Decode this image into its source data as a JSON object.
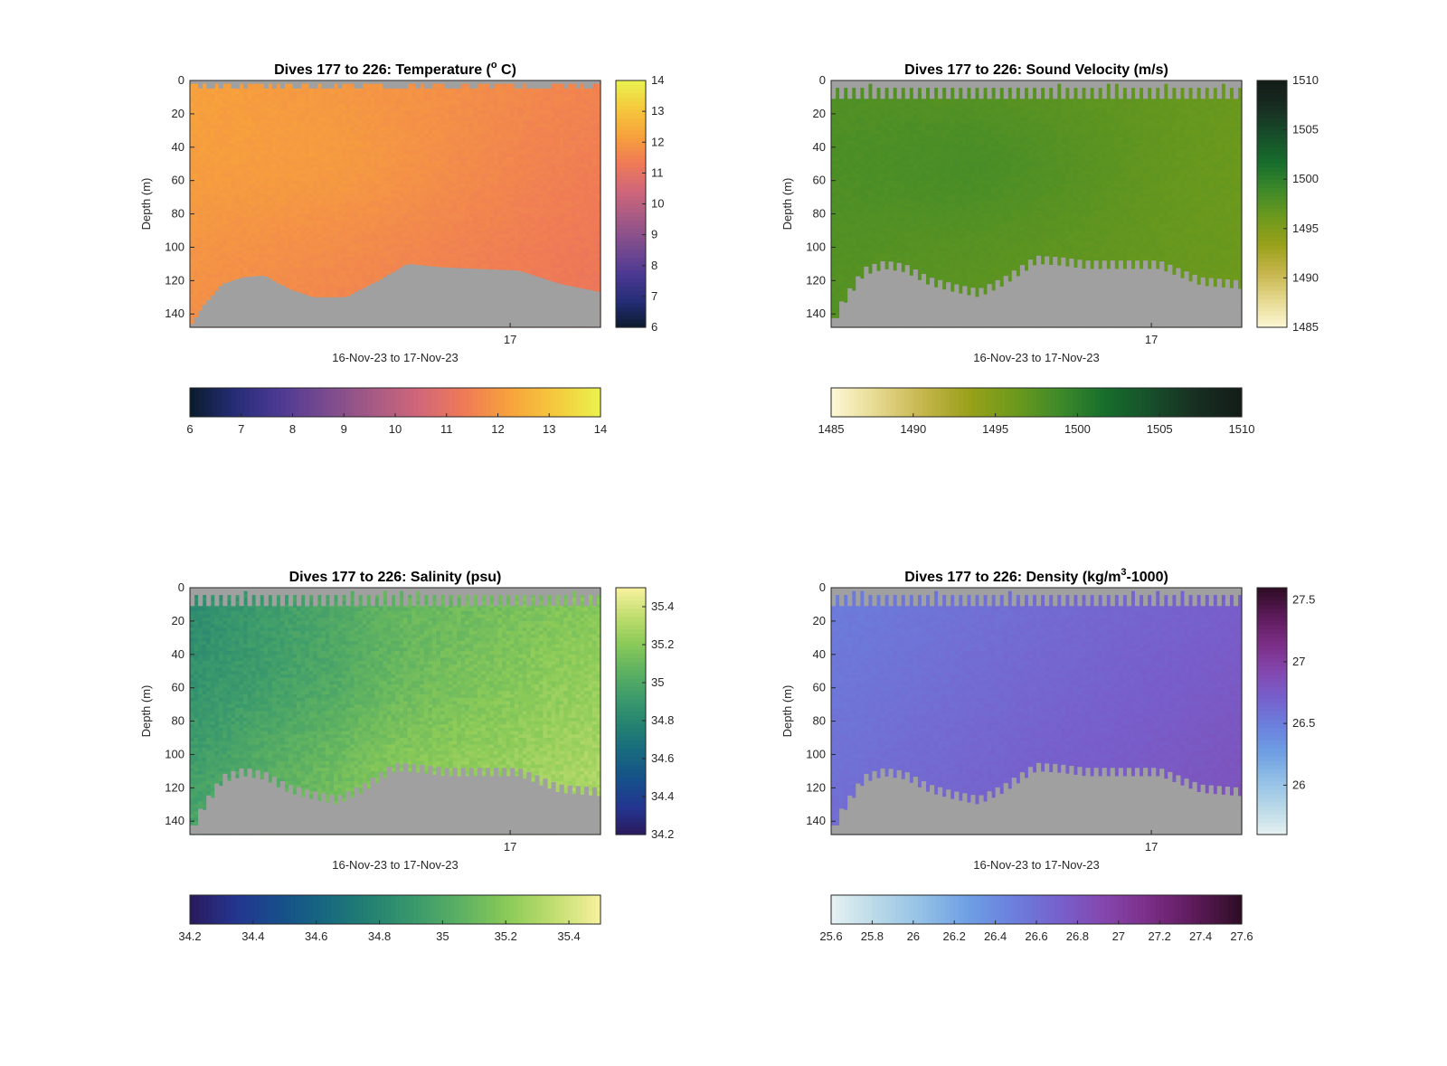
{
  "figure": {
    "background": "#ffffff"
  },
  "chart_data": [
    {
      "type": "heatmap",
      "title_parts": [
        "Dives 177 to 226: Temperature (",
        "o",
        " C)"
      ],
      "title_sup_index": 1,
      "xlabel": "16-Nov-23 to 17-Nov-23",
      "ylabel": "Depth (m)",
      "x_ticks": [
        {
          "label": "17",
          "frac": 0.78
        }
      ],
      "ylim": [
        0,
        148
      ],
      "y_ticks": [
        0,
        20,
        40,
        60,
        80,
        100,
        120,
        140
      ],
      "clim": [
        6,
        14
      ],
      "side_colorbar_ticks": [
        "6",
        "7",
        "8",
        "9",
        "10",
        "11",
        "12",
        "13",
        "14"
      ],
      "bottom_colorbar_ticks": [
        "6",
        "7",
        "8",
        "9",
        "10",
        "11",
        "12",
        "13",
        "14"
      ],
      "colormap": [
        "#0b1b2c",
        "#262d78",
        "#4e3a93",
        "#7a4b8e",
        "#a65a85",
        "#d0667a",
        "#ef7a56",
        "#f7a23c",
        "#f5c93c",
        "#eaf24f"
      ],
      "columns": 100,
      "surface_gap_max": 6,
      "surface_gap_pattern": "random",
      "value_field": {
        "base": 11.9,
        "left_bonus": 0.3,
        "right_penalty": 0.35,
        "mid_bonus": 0.2,
        "deep_penalty": 0.4,
        "noise": 0.08
      },
      "bottom_profile": {
        "x": [
          0,
          0.03,
          0.08,
          0.13,
          0.18,
          0.24,
          0.3,
          0.38,
          0.46,
          0.53,
          0.61,
          0.7,
          0.8,
          0.9,
          1.0
        ],
        "depth": [
          148,
          136,
          122,
          118,
          117,
          125,
          130,
          130,
          120,
          110,
          112,
          113,
          114,
          122,
          127
        ]
      },
      "teeth": false,
      "mask_color": "#a0a0a0"
    },
    {
      "type": "heatmap",
      "title_parts": [
        "Dives 177 to 226: Sound Velocity (m/s)"
      ],
      "xlabel": "16-Nov-23 to 17-Nov-23",
      "ylabel": "Depth (m)",
      "x_ticks": [
        {
          "label": "17",
          "frac": 0.78
        }
      ],
      "ylim": [
        0,
        148
      ],
      "y_ticks": [
        0,
        20,
        40,
        60,
        80,
        100,
        120,
        140
      ],
      "clim": [
        1485,
        1510
      ],
      "side_colorbar_ticks": [
        "1485",
        "1490",
        "1495",
        "1500",
        "1505",
        "1510"
      ],
      "bottom_colorbar_ticks": [
        "1485",
        "1490",
        "1495",
        "1500",
        "1505",
        "1510"
      ],
      "colormap": [
        "#fdf7d6",
        "#e6d98f",
        "#c6b64d",
        "#9aa11a",
        "#6e9a1c",
        "#3f8a2a",
        "#176e2c",
        "#174f2a",
        "#182e22",
        "#131c17"
      ],
      "columns": 100,
      "surface_gap_max": 11,
      "surface_gap_pattern": "teeth",
      "value_field": {
        "base": 1497.2,
        "left_bonus": 0.6,
        "right_penalty": 0.8,
        "mid_bonus": 1.0,
        "deep_penalty": 0.2,
        "noise": 0.2
      },
      "bottom_profile": {
        "x": [
          0,
          0.03,
          0.08,
          0.13,
          0.18,
          0.24,
          0.3,
          0.36,
          0.42,
          0.5,
          0.56,
          0.62,
          0.7,
          0.8,
          0.9,
          1.0
        ],
        "depth": [
          145,
          130,
          112,
          108,
          110,
          118,
          122,
          125,
          118,
          105,
          106,
          108,
          108,
          108,
          118,
          120
        ]
      },
      "teeth": true,
      "mask_color": "#a0a0a0"
    },
    {
      "type": "heatmap",
      "title_parts": [
        "Dives 177 to 226: Salinity (psu)"
      ],
      "xlabel": "16-Nov-23 to 17-Nov-23",
      "ylabel": "Depth (m)",
      "x_ticks": [
        {
          "label": "17",
          "frac": 0.78
        }
      ],
      "ylim": [
        0,
        148
      ],
      "y_ticks": [
        0,
        20,
        40,
        60,
        80,
        100,
        120,
        140
      ],
      "clim": [
        34.2,
        35.5
      ],
      "side_colorbar_ticks": [
        "34.2",
        "34.4",
        "34.6",
        "34.8",
        "35",
        "35.2",
        "35.4"
      ],
      "bottom_colorbar_ticks": [
        "34.2",
        "34.4",
        "34.6",
        "34.8",
        "35",
        "35.2",
        "35.4"
      ],
      "colormap": [
        "#2a1a5c",
        "#243590",
        "#164f8a",
        "#17697f",
        "#248271",
        "#3c9b6c",
        "#5fb261",
        "#8ccb58",
        "#c2de70",
        "#f8f1a0"
      ],
      "columns": 100,
      "surface_gap_max": 11,
      "surface_gap_pattern": "teeth",
      "value_field": {
        "base": 35.08,
        "left_bonus": -0.25,
        "right_penalty": -0.1,
        "mid_bonus": -0.05,
        "deep_penalty": -0.15,
        "noise": 0.04
      },
      "bottom_profile": {
        "x": [
          0,
          0.03,
          0.08,
          0.13,
          0.18,
          0.24,
          0.3,
          0.36,
          0.42,
          0.5,
          0.56,
          0.62,
          0.7,
          0.8,
          0.9,
          1.0
        ],
        "depth": [
          145,
          130,
          112,
          108,
          110,
          118,
          122,
          125,
          118,
          105,
          106,
          108,
          108,
          108,
          118,
          120
        ]
      },
      "teeth": true,
      "mask_color": "#a0a0a0"
    },
    {
      "type": "heatmap",
      "title_parts": [
        "Dives 177 to 226: Density (kg/m",
        "3",
        "-1000)"
      ],
      "title_sup_index": 1,
      "xlabel": "16-Nov-23 to 17-Nov-23",
      "ylabel": "Depth (m)",
      "x_ticks": [
        {
          "label": "17",
          "frac": 0.78
        }
      ],
      "ylim": [
        0,
        148
      ],
      "y_ticks": [
        0,
        20,
        40,
        60,
        80,
        100,
        120,
        140
      ],
      "clim": [
        25.6,
        27.6
      ],
      "side_colorbar_ticks": [
        "26",
        "26.5",
        "27",
        "27.5"
      ],
      "bottom_colorbar_ticks": [
        "25.6",
        "25.8",
        "26",
        "26.2",
        "26.4",
        "26.6",
        "26.8",
        "27",
        "27.2",
        "27.4",
        "27.6"
      ],
      "colormap": [
        "#e6f1f1",
        "#b9d9e8",
        "#93c0e6",
        "#6e9fe3",
        "#6b7fdd",
        "#7760cc",
        "#8446ad",
        "#7b2d85",
        "#5b1a58",
        "#2e0c24"
      ],
      "columns": 100,
      "surface_gap_max": 11,
      "surface_gap_pattern": "teeth",
      "value_field": {
        "base": 26.62,
        "left_bonus": -0.12,
        "right_penalty": -0.1,
        "mid_bonus": 0.0,
        "deep_penalty": -0.12,
        "noise": 0.02
      },
      "bottom_profile": {
        "x": [
          0,
          0.03,
          0.08,
          0.13,
          0.18,
          0.24,
          0.3,
          0.36,
          0.42,
          0.5,
          0.56,
          0.62,
          0.7,
          0.8,
          0.9,
          1.0
        ],
        "depth": [
          145,
          130,
          112,
          108,
          110,
          118,
          122,
          125,
          118,
          105,
          106,
          108,
          108,
          108,
          118,
          120
        ]
      },
      "teeth": true,
      "mask_color": "#a0a0a0"
    }
  ]
}
